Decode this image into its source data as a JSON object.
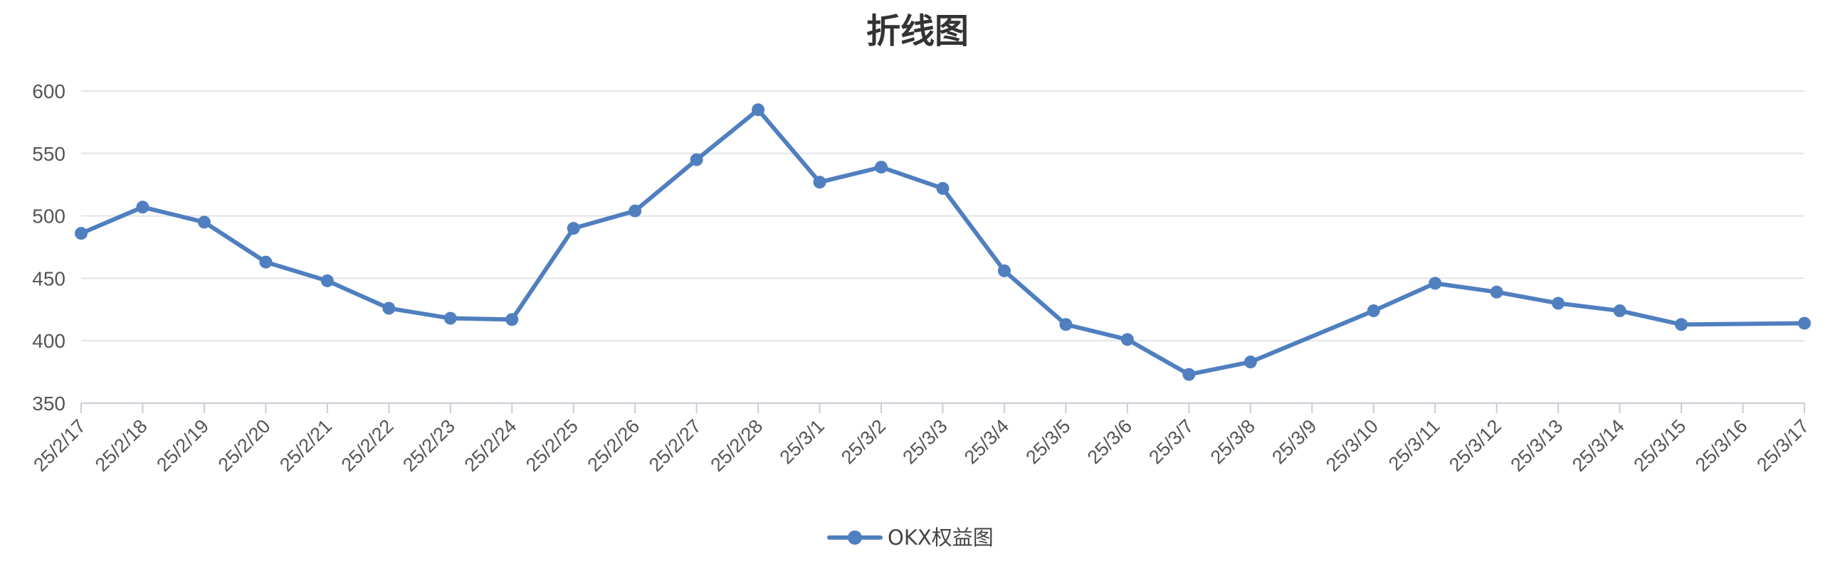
{
  "chart_data": {
    "type": "line",
    "title": "折线图",
    "xlabel": "",
    "ylabel": "",
    "ylim": [
      350,
      600
    ],
    "yticks": [
      350,
      400,
      450,
      500,
      550,
      600
    ],
    "grid": true,
    "legend_position": "bottom-center",
    "categories": [
      "25/2/17",
      "25/2/18",
      "25/2/19",
      "25/2/20",
      "25/2/21",
      "25/2/22",
      "25/2/23",
      "25/2/24",
      "25/2/25",
      "25/2/26",
      "25/2/27",
      "25/2/28",
      "25/3/1",
      "25/3/2",
      "25/3/3",
      "25/3/4",
      "25/3/5",
      "25/3/6",
      "25/3/7",
      "25/3/8",
      "25/3/9",
      "25/3/10",
      "25/3/11",
      "25/3/12",
      "25/3/13",
      "25/3/14",
      "25/3/15",
      "25/3/16",
      "25/3/17"
    ],
    "series": [
      {
        "name": "OKX权益图",
        "color": "#4f7fbf",
        "values": [
          486,
          507,
          495,
          463,
          448,
          426,
          418,
          417,
          490,
          504,
          545,
          585,
          527,
          539,
          522,
          456,
          413,
          401,
          373,
          383,
          null,
          424,
          446,
          439,
          430,
          424,
          413,
          null,
          414
        ]
      }
    ]
  }
}
